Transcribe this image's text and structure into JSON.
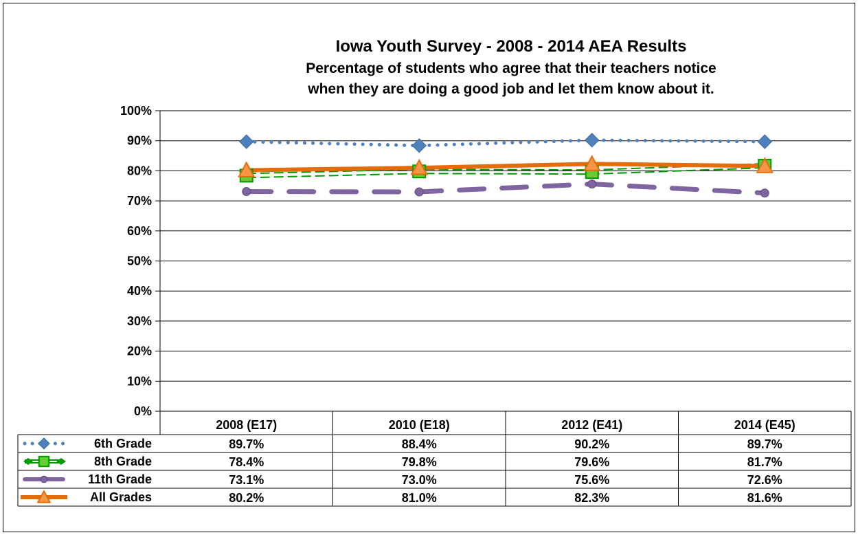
{
  "chart_data": {
    "type": "line",
    "title": "Iowa Youth Survey - 2008 - 2014 AEA Results",
    "subtitle": [
      "Percentage of students who agree that their teachers notice",
      "when they are doing a good job and let them know about it."
    ],
    "categories": [
      "2008 (E17)",
      "2010 (E18)",
      "2012 (E41)",
      "2014 (E45)"
    ],
    "ylim": [
      0,
      100
    ],
    "yticks": [
      0,
      10,
      20,
      30,
      40,
      50,
      60,
      70,
      80,
      90,
      100
    ],
    "ytick_labels": [
      "0%",
      "10%",
      "20%",
      "30%",
      "40%",
      "50%",
      "60%",
      "70%",
      "80%",
      "90%",
      "100%"
    ],
    "grid": true,
    "legend": "data-table-below",
    "series": [
      {
        "name": "6th Grade",
        "values": [
          89.7,
          88.4,
          90.2,
          89.7
        ],
        "labels": [
          "89.7%",
          "88.4%",
          "90.2%",
          "89.7%"
        ],
        "color": "#4F81BD",
        "line": "dotted",
        "marker": "diamond"
      },
      {
        "name": "8th Grade",
        "values": [
          78.4,
          79.8,
          79.6,
          81.7
        ],
        "labels": [
          "78.4%",
          "79.8%",
          "79.6%",
          "81.7%"
        ],
        "color": "#009900",
        "line": "double-dashed",
        "marker": "square",
        "marker_fill": "#66CC33"
      },
      {
        "name": "11th Grade",
        "values": [
          73.1,
          73.0,
          75.6,
          72.6
        ],
        "labels": [
          "73.1%",
          "73.0%",
          "75.6%",
          "72.6%"
        ],
        "color": "#8064A2",
        "line": "long-dash",
        "marker": "circle"
      },
      {
        "name": "All Grades",
        "values": [
          80.2,
          81.0,
          82.3,
          81.6
        ],
        "labels": [
          "80.2%",
          "81.0%",
          "82.3%",
          "81.6%"
        ],
        "color": "#E46C0A",
        "line": "solid",
        "marker": "triangle",
        "marker_fill": "#F79646"
      }
    ]
  }
}
